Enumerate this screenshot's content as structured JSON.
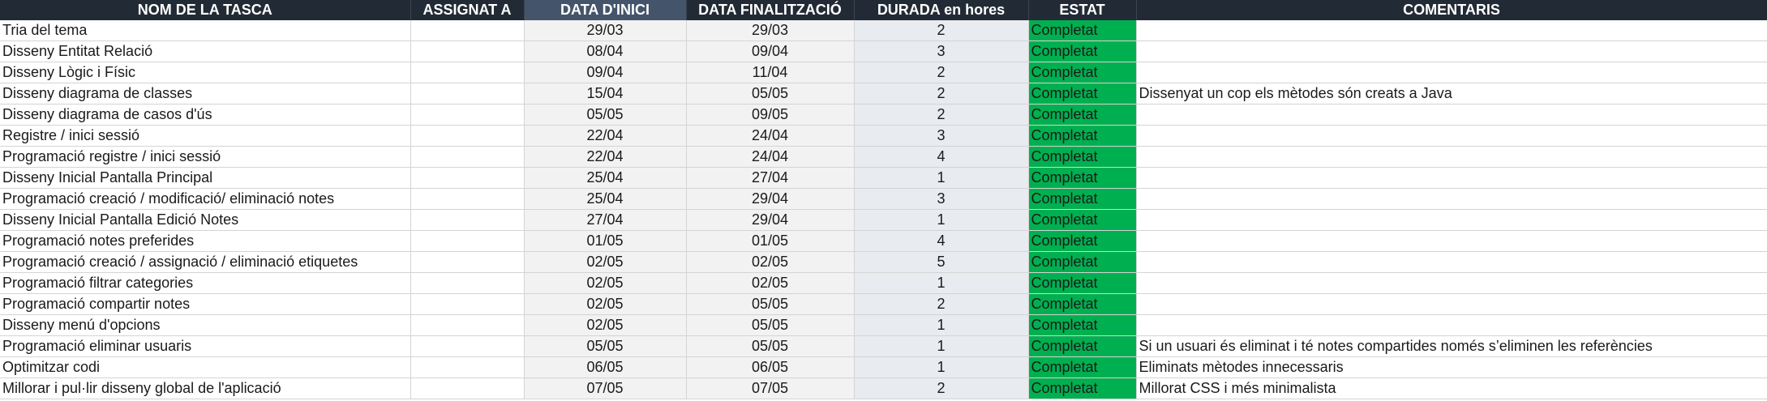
{
  "headers": {
    "task": "NOM DE LA TASCA",
    "assigned": "ASSIGNAT A",
    "start": "DATA D'INICI",
    "end": "DATA FINALITZACIÓ",
    "duration": "DURADA en hores",
    "status": "ESTAT",
    "comments": "COMENTARIS"
  },
  "colors": {
    "header_bg": "#222a35",
    "header_highlight_bg": "#44546a",
    "status_completed": "#00b050"
  },
  "rows": [
    {
      "task": "Tria del tema",
      "assigned": "",
      "start": "29/03",
      "end": "29/03",
      "duration": "2",
      "status": "Completat",
      "comment": ""
    },
    {
      "task": "Disseny Entitat Relació",
      "assigned": "",
      "start": "08/04",
      "end": "09/04",
      "duration": "3",
      "status": "Completat",
      "comment": ""
    },
    {
      "task": "Disseny Lògic i Físic",
      "assigned": "",
      "start": "09/04",
      "end": "11/04",
      "duration": "2",
      "status": "Completat",
      "comment": ""
    },
    {
      "task": "Disseny diagrama de classes",
      "assigned": "",
      "start": "15/04",
      "end": "05/05",
      "duration": "2",
      "status": "Completat",
      "comment": "Dissenyat un cop els mètodes són creats a Java"
    },
    {
      "task": "Disseny diagrama de casos d'ús",
      "assigned": "",
      "start": "05/05",
      "end": "09/05",
      "duration": "2",
      "status": "Completat",
      "comment": ""
    },
    {
      "task": "Registre / inici sessió",
      "assigned": "",
      "start": "22/04",
      "end": "24/04",
      "duration": "3",
      "status": "Completat",
      "comment": ""
    },
    {
      "task": "Programació registre / inici sessió",
      "assigned": "",
      "start": "22/04",
      "end": "24/04",
      "duration": "4",
      "status": "Completat",
      "comment": ""
    },
    {
      "task": "Disseny Inicial Pantalla Principal",
      "assigned": "",
      "start": "25/04",
      "end": "27/04",
      "duration": "1",
      "status": "Completat",
      "comment": ""
    },
    {
      "task": "Programació creació / modificació/ eliminació notes",
      "assigned": "",
      "start": "25/04",
      "end": "29/04",
      "duration": "3",
      "status": "Completat",
      "comment": ""
    },
    {
      "task": "Disseny Inicial Pantalla Edició Notes",
      "assigned": "",
      "start": "27/04",
      "end": "29/04",
      "duration": "1",
      "status": "Completat",
      "comment": ""
    },
    {
      "task": "Programació notes preferides",
      "assigned": "",
      "start": "01/05",
      "end": "01/05",
      "duration": "4",
      "status": "Completat",
      "comment": ""
    },
    {
      "task": "Programació creació / assignació / eliminació etiquetes",
      "assigned": "",
      "start": "02/05",
      "end": "02/05",
      "duration": "5",
      "status": "Completat",
      "comment": ""
    },
    {
      "task": "Programació filtrar categories",
      "assigned": "",
      "start": "02/05",
      "end": "02/05",
      "duration": "1",
      "status": "Completat",
      "comment": ""
    },
    {
      "task": "Programació compartir notes",
      "assigned": "",
      "start": "02/05",
      "end": "05/05",
      "duration": "2",
      "status": "Completat",
      "comment": ""
    },
    {
      "task": "Disseny menú d'opcions",
      "assigned": "",
      "start": "02/05",
      "end": "05/05",
      "duration": "1",
      "status": "Completat",
      "comment": ""
    },
    {
      "task": "Programació eliminar usuaris",
      "assigned": "",
      "start": "05/05",
      "end": "05/05",
      "duration": "1",
      "status": "Completat",
      "comment": "Si un usuari és eliminat i té notes compartides només s’eliminen les referències"
    },
    {
      "task": "Optimitzar codi",
      "assigned": "",
      "start": "06/05",
      "end": "06/05",
      "duration": "1",
      "status": "Completat",
      "comment": "Eliminats mètodes innecessaris"
    },
    {
      "task": "Millorar i pul·lir disseny global de l'aplicació",
      "assigned": "",
      "start": "07/05",
      "end": "07/05",
      "duration": "2",
      "status": "Completat",
      "comment": "Millorat CSS i més minimalista"
    }
  ]
}
